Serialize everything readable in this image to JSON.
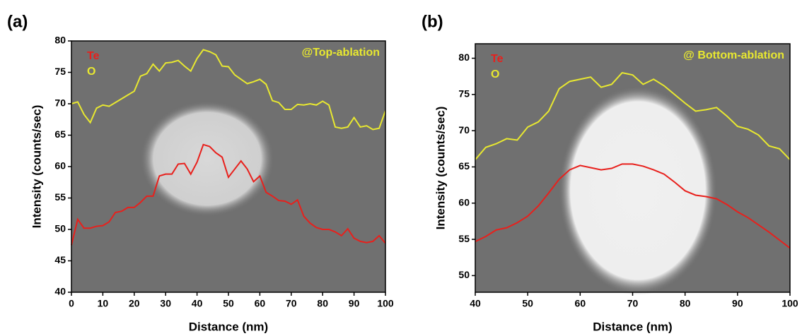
{
  "chart_data": [
    {
      "type": "line",
      "label": "(a)",
      "annotation": "@Top-ablation",
      "annotation_color": "#e8e830",
      "x_label": "Distance (nm)",
      "y_label": "Intensity (counts/sec)",
      "xlim": [
        0,
        100
      ],
      "xticks": [
        0,
        10,
        20,
        30,
        40,
        50,
        60,
        70,
        80,
        90,
        100
      ],
      "ylim": [
        40,
        80
      ],
      "yticks": [
        40,
        45,
        50,
        55,
        60,
        65,
        70,
        75,
        80
      ],
      "x": [
        0,
        2,
        4,
        6,
        8,
        10,
        12,
        14,
        16,
        18,
        20,
        22,
        24,
        26,
        28,
        30,
        32,
        34,
        36,
        38,
        40,
        42,
        44,
        46,
        48,
        50,
        52,
        54,
        56,
        58,
        60,
        62,
        64,
        66,
        68,
        70,
        72,
        74,
        76,
        78,
        80,
        82,
        84,
        86,
        88,
        90,
        92,
        94,
        96,
        98,
        100
      ],
      "series": [
        {
          "name": "Te",
          "color": "#e8201c",
          "values": [
            47.5,
            51.6,
            50.2,
            50.2,
            50.5,
            50.6,
            51.2,
            52.7,
            52.9,
            53.5,
            53.5,
            54.3,
            55.3,
            55.3,
            58.5,
            58.8,
            58.8,
            60.4,
            60.5,
            58.8,
            60.7,
            63.5,
            63.2,
            62.2,
            61.5,
            58.3,
            59.6,
            60.9,
            59.6,
            57.6,
            58.5,
            55.9,
            55.3,
            54.6,
            54.5,
            54.0,
            54.7,
            52.1,
            51.0,
            50.3,
            50.0,
            50.0,
            49.6,
            49.0,
            50.1,
            48.6,
            48.1,
            47.9,
            48.1,
            49.0,
            47.8
          ]
        },
        {
          "name": "O",
          "color": "#e8e830",
          "values": [
            70.0,
            70.3,
            68.3,
            67.0,
            69.3,
            69.8,
            69.6,
            70.2,
            70.8,
            71.4,
            72.0,
            74.4,
            74.8,
            76.3,
            75.2,
            76.5,
            76.6,
            76.9,
            76.0,
            75.2,
            77.2,
            78.6,
            78.3,
            77.8,
            76.0,
            75.9,
            74.6,
            73.9,
            73.2,
            73.5,
            73.9,
            73.1,
            70.5,
            70.2,
            69.1,
            69.1,
            69.9,
            69.8,
            70.0,
            69.8,
            70.4,
            69.8,
            66.3,
            66.1,
            66.3,
            67.8,
            66.3,
            66.5,
            65.9,
            66.1,
            68.9
          ]
        }
      ]
    },
    {
      "type": "line",
      "label": "(b)",
      "annotation": "@ Bottom-ablation",
      "annotation_color": "#e8e830",
      "x_label": "Distance (nm)",
      "y_label": "Intensity (counts/sec)",
      "xlim": [
        40,
        100
      ],
      "xticks": [
        40,
        50,
        60,
        70,
        80,
        90,
        100
      ],
      "ylim": [
        47.7,
        82
      ],
      "yticks": [
        50,
        55,
        60,
        65,
        70,
        75,
        80
      ],
      "x": [
        40,
        42,
        44,
        46,
        48,
        50,
        52,
        54,
        56,
        58,
        60,
        62,
        64,
        66,
        68,
        70,
        72,
        74,
        76,
        78,
        80,
        82,
        84,
        86,
        88,
        90,
        92,
        94,
        96,
        98,
        100
      ],
      "series": [
        {
          "name": "Te",
          "color": "#e8201c",
          "values": [
            54.7,
            55.4,
            56.3,
            56.6,
            57.3,
            58.2,
            59.6,
            61.4,
            63.3,
            64.6,
            65.2,
            64.9,
            64.6,
            64.8,
            65.4,
            65.4,
            65.1,
            64.6,
            64.0,
            62.9,
            61.7,
            61.1,
            60.9,
            60.6,
            59.8,
            58.8,
            58.0,
            57.0,
            56.0,
            54.9,
            53.8
          ]
        },
        {
          "name": "O",
          "color": "#e8e830",
          "values": [
            66.0,
            67.7,
            68.2,
            68.9,
            68.7,
            70.5,
            71.2,
            72.7,
            75.8,
            76.8,
            77.1,
            77.4,
            76.0,
            76.4,
            78.0,
            77.7,
            76.4,
            77.1,
            76.2,
            75.0,
            73.8,
            72.7,
            72.9,
            73.2,
            72.0,
            70.6,
            70.2,
            69.4,
            67.9,
            67.5,
            66.0
          ]
        }
      ]
    }
  ]
}
